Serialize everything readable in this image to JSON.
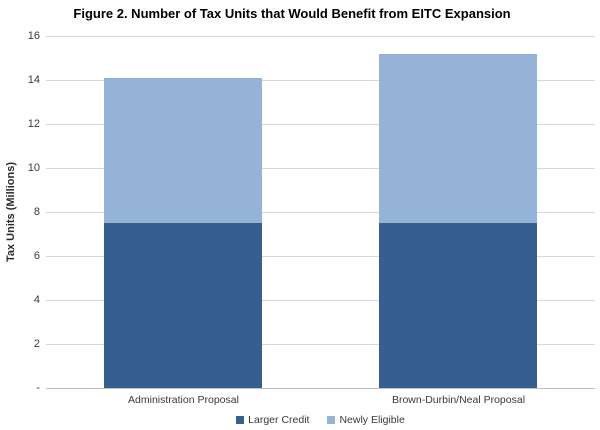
{
  "chart_data": {
    "type": "bar",
    "stacked": true,
    "title": "Figure 2. Number of Tax Units that Would Benefit from EITC Expansion",
    "categories": [
      "Administration Proposal",
      "Brown-Durbin/Neal Proposal"
    ],
    "series": [
      {
        "name": "Larger Credit",
        "color": "#365F91",
        "values": [
          7.5,
          7.5
        ]
      },
      {
        "name": "Newly Eligible",
        "color": "#95B3D7",
        "values": [
          6.6,
          7.7
        ]
      }
    ],
    "stacked_totals": [
      14.1,
      15.2
    ],
    "ylabel": "Tax Units (Millions)",
    "xlabel": "",
    "ylim": [
      0,
      16
    ],
    "ytick_interval": 2,
    "ytick_labels_top_to_bottom": [
      "16",
      "14",
      "12",
      "10",
      "8",
      "6",
      "4",
      "2",
      "-"
    ],
    "grid": true,
    "legend_position": "bottom",
    "gridline_color": "#d9d9d9",
    "axis_line_color": "#c0c0c0",
    "background_color": "#ffffff"
  }
}
